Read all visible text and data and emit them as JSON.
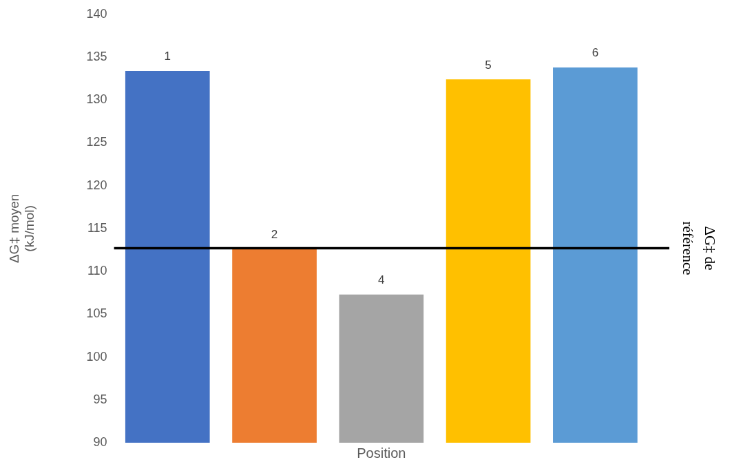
{
  "chart_data": {
    "type": "bar",
    "xlabel": "Position",
    "ylabel": "ΔG‡ moyen (kJ/mol)",
    "categories": [
      "1",
      "2",
      "4",
      "5",
      "6"
    ],
    "values": [
      133.4,
      112.6,
      107.3,
      132.4,
      133.8
    ],
    "colors": [
      "#4472c4",
      "#ed7d31",
      "#a5a5a5",
      "#ffc000",
      "#5b9bd5"
    ],
    "ylim": [
      90,
      140
    ],
    "yticks": [
      90,
      95,
      100,
      105,
      110,
      115,
      120,
      125,
      130,
      135,
      140
    ],
    "grid": false,
    "legend": false,
    "ref_lines": [
      {
        "axis": "y",
        "value": 112.7,
        "label": "ΔG‡ de référence",
        "color": "#000000"
      }
    ]
  }
}
